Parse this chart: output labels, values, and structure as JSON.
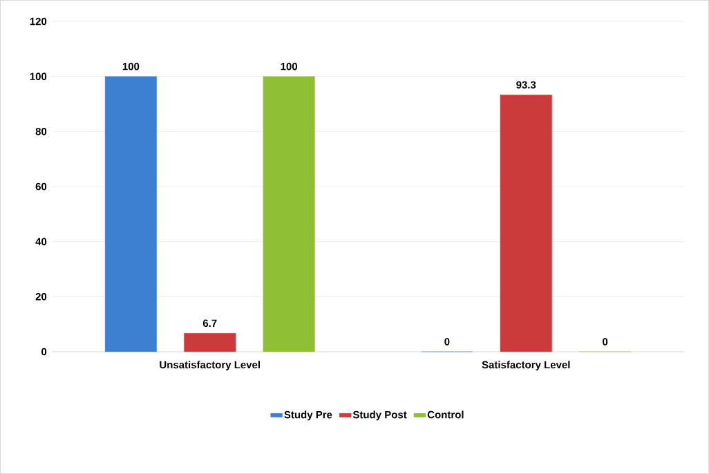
{
  "chart_data": {
    "type": "bar",
    "categories": [
      "Unsatisfactory Level",
      "Satisfactory Level"
    ],
    "series": [
      {
        "name": "Study Pre",
        "color": "#3d7fd0",
        "values": [
          100,
          0
        ]
      },
      {
        "name": "Study Post",
        "color": "#cc3b3b",
        "values": [
          6.7,
          93.3
        ]
      },
      {
        "name": "Control",
        "color": "#8fbf35",
        "values": [
          100,
          0
        ]
      }
    ],
    "ylim": [
      0,
      120
    ],
    "yticks": [
      0,
      20,
      40,
      60,
      80,
      100,
      120
    ],
    "grid": "y",
    "legend": "bottom",
    "data_labels": true
  }
}
